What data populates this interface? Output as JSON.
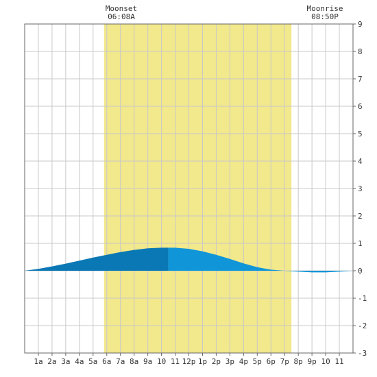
{
  "chart_data": {
    "type": "area",
    "title": "",
    "xlabel": "",
    "ylabel": "",
    "x_tick_labels": [
      "1a",
      "2a",
      "3a",
      "4a",
      "5a",
      "6a",
      "7a",
      "8a",
      "9a",
      "10",
      "11",
      "12p",
      "1p",
      "2p",
      "3p",
      "4p",
      "5p",
      "6p",
      "7p",
      "8p",
      "9p",
      "10",
      "11"
    ],
    "ylim": [
      -3,
      9
    ],
    "xlim_hours": [
      0,
      24
    ],
    "y_ticks": [
      -3,
      -2,
      -1,
      0,
      1,
      2,
      3,
      4,
      5,
      6,
      7,
      8,
      9
    ],
    "y_axis_side": "right",
    "grid": true,
    "annotations": [
      {
        "label": "Moonset",
        "time": "06:08A"
      },
      {
        "label": "Moonrise",
        "time": "08:50P"
      }
    ],
    "highlight_band_hours": [
      5.8,
      19.5
    ],
    "series": [
      {
        "x": [
          0,
          1,
          2,
          3,
          4,
          5,
          6,
          7,
          8,
          9,
          10,
          10.5,
          11,
          12,
          13,
          14,
          15,
          16,
          17,
          18,
          19,
          20,
          21,
          22,
          23,
          24
        ],
        "y": [
          0.0,
          0.07,
          0.16,
          0.26,
          0.37,
          0.48,
          0.58,
          0.68,
          0.76,
          0.82,
          0.84,
          0.84,
          0.84,
          0.8,
          0.71,
          0.58,
          0.43,
          0.27,
          0.13,
          0.04,
          0.0,
          -0.03,
          -0.06,
          -0.06,
          -0.03,
          0.0
        ],
        "split_at_hour": 10.5
      }
    ],
    "colors": {
      "band": "#f2e88c",
      "fill_before": "#0a78b4",
      "fill_after": "#1096d8",
      "grid": "#c8c8c8",
      "axis": "#666666"
    }
  }
}
